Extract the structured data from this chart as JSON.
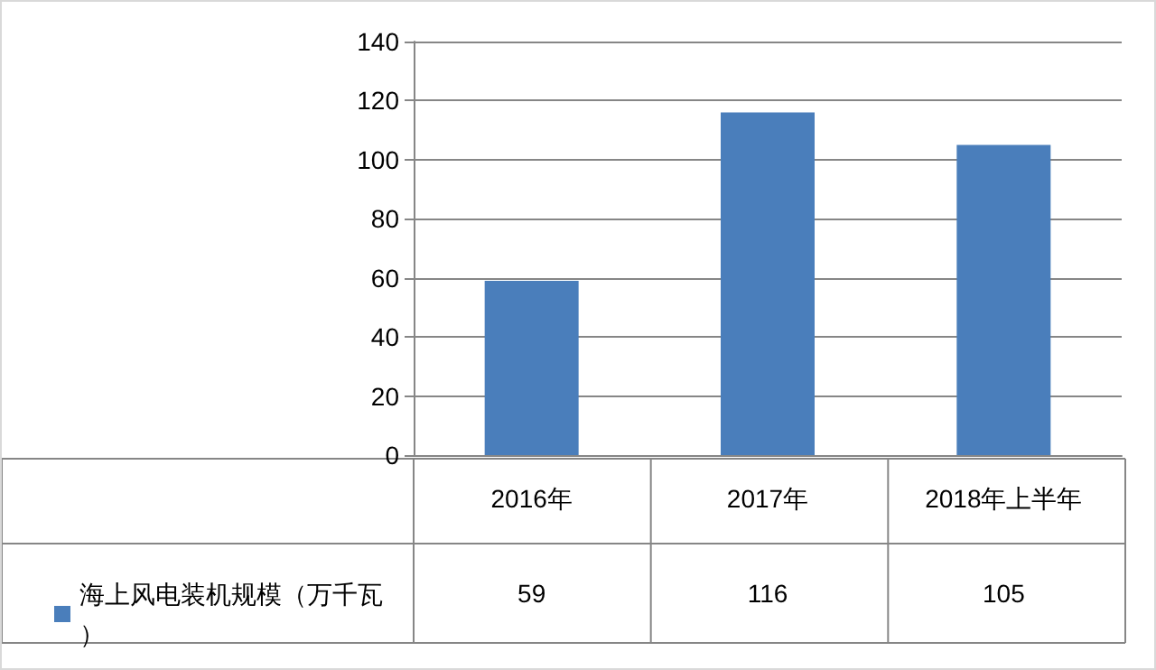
{
  "chart_data": {
    "type": "bar",
    "categories": [
      "2016年",
      "2017年",
      "2018年上半年"
    ],
    "series": [
      {
        "name": "海上风电装机规模（万千瓦）",
        "color": "#4a7ebb",
        "values": [
          59,
          116,
          105
        ]
      }
    ],
    "ylim": [
      0,
      140
    ],
    "yticks": [
      0,
      20,
      40,
      60,
      80,
      100,
      120,
      140
    ],
    "grid": "y",
    "legend": "bottom left",
    "data_labels": true
  }
}
